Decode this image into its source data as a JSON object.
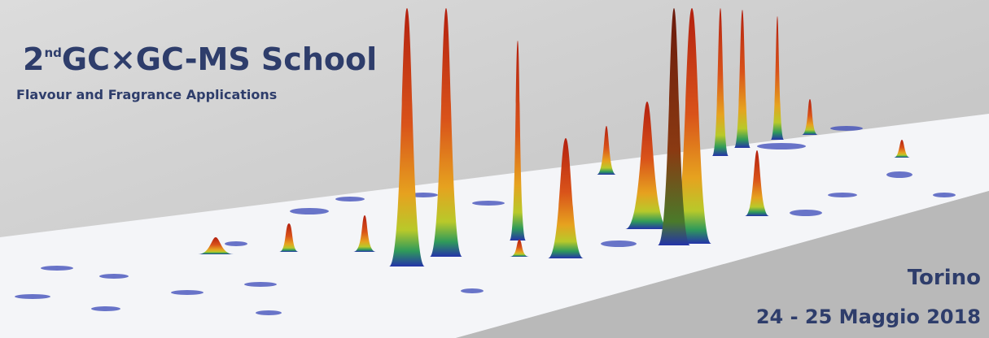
{
  "header": {
    "number": "2",
    "superscript": "nd",
    "title": "GC×GC-MS  School",
    "subtitle": "Flavour and Fragrance Applications"
  },
  "event": {
    "city": "Torino",
    "dates": "24 - 25 Maggio 2018"
  }
}
